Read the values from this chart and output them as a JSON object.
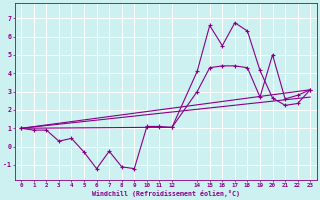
{
  "xlabel": "Windchill (Refroidissement éolien,°C)",
  "bg_color": "#cdf0f0",
  "grid_color": "#ffffff",
  "line_color": "#880088",
  "xlim": [
    -0.5,
    23.5
  ],
  "ylim": [
    -1.8,
    7.8
  ],
  "xticks": [
    0,
    1,
    2,
    3,
    4,
    5,
    6,
    7,
    8,
    9,
    10,
    11,
    12,
    14,
    15,
    16,
    17,
    18,
    19,
    20,
    21,
    22,
    23
  ],
  "yticks": [
    -1,
    0,
    1,
    2,
    3,
    4,
    5,
    6,
    7
  ],
  "line1_x": [
    0,
    1,
    2,
    3,
    4,
    5,
    6,
    7,
    8,
    9,
    10,
    11,
    12,
    14,
    15,
    16,
    17,
    18,
    19,
    20,
    21,
    22,
    23
  ],
  "line1_y": [
    1.0,
    0.9,
    0.9,
    0.3,
    0.45,
    -0.3,
    -1.2,
    -0.25,
    -1.1,
    -1.2,
    1.1,
    1.1,
    1.05,
    4.1,
    6.6,
    5.5,
    6.75,
    6.3,
    4.15,
    2.65,
    2.25,
    2.35,
    3.1
  ],
  "line2_x": [
    0,
    10,
    11,
    12,
    14,
    15,
    16,
    17,
    18,
    19,
    20,
    21,
    22,
    23
  ],
  "line2_y": [
    1.0,
    1.05,
    1.05,
    1.05,
    3.0,
    4.3,
    4.4,
    4.4,
    4.3,
    2.7,
    5.0,
    2.6,
    2.8,
    3.1
  ],
  "line3_x": [
    0,
    23
  ],
  "line3_y": [
    1.0,
    3.1
  ],
  "line4_x": [
    0,
    23
  ],
  "line4_y": [
    1.0,
    2.7
  ]
}
